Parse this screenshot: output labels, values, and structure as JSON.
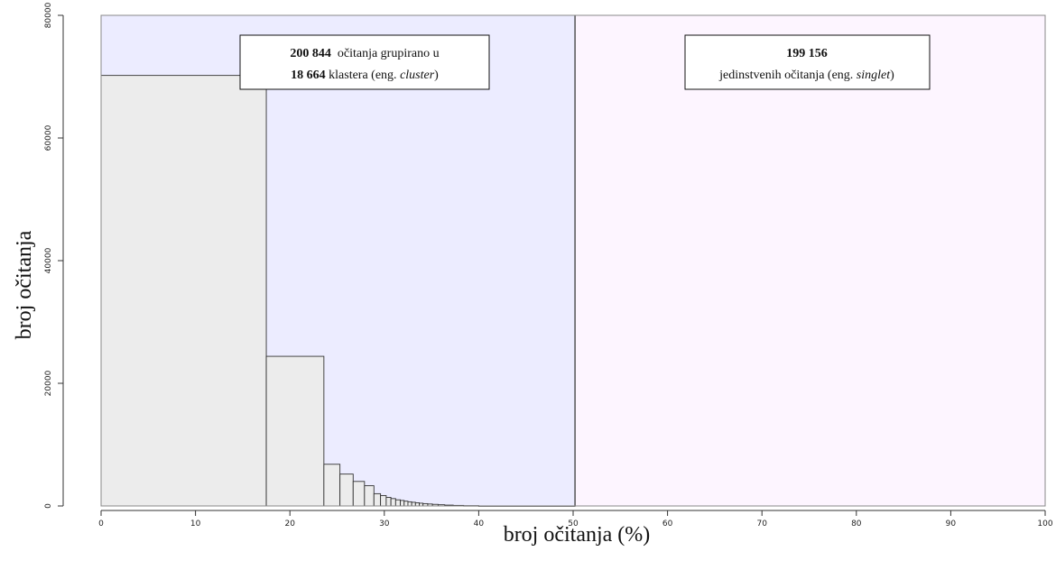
{
  "chart_data": {
    "type": "bar",
    "xlabel": "broj očitanja (%)",
    "ylabel": "broj očitanja",
    "xlim": [
      0,
      100
    ],
    "ylim": [
      0,
      80000
    ],
    "x_ticks": [
      "0",
      "10",
      "20",
      "30",
      "40",
      "50",
      "60",
      "70",
      "80",
      "90",
      "100"
    ],
    "y_ticks": [
      "0",
      "20000",
      "40000",
      "60000",
      "80000"
    ],
    "regions": [
      {
        "from": 0,
        "to": 50.2,
        "color": "#ececff"
      },
      {
        "from": 50.2,
        "to": 100,
        "color": "#fdf5ff"
      }
    ],
    "divider_x": 50.2,
    "bars": [
      {
        "x0": 0,
        "x1": 17.5,
        "value": 70200
      },
      {
        "x0": 17.5,
        "x1": 23.6,
        "value": 24400
      },
      {
        "x0": 23.6,
        "x1": 25.3,
        "value": 6800
      },
      {
        "x0": 25.3,
        "x1": 26.7,
        "value": 5200
      },
      {
        "x0": 26.7,
        "x1": 27.9,
        "value": 4000
      },
      {
        "x0": 27.9,
        "x1": 28.9,
        "value": 3300
      },
      {
        "x0": 28.9,
        "x1": 29.6,
        "value": 2000
      },
      {
        "x0": 29.6,
        "x1": 30.2,
        "value": 1700
      },
      {
        "x0": 30.2,
        "x1": 30.7,
        "value": 1400
      },
      {
        "x0": 30.7,
        "x1": 31.2,
        "value": 1200
      },
      {
        "x0": 31.2,
        "x1": 31.7,
        "value": 1000
      },
      {
        "x0": 31.7,
        "x1": 32.1,
        "value": 900
      },
      {
        "x0": 32.1,
        "x1": 32.5,
        "value": 780
      },
      {
        "x0": 32.5,
        "x1": 32.9,
        "value": 680
      },
      {
        "x0": 32.9,
        "x1": 33.3,
        "value": 600
      },
      {
        "x0": 33.3,
        "x1": 33.7,
        "value": 520
      },
      {
        "x0": 33.7,
        "x1": 34.1,
        "value": 450
      },
      {
        "x0": 34.1,
        "x1": 34.6,
        "value": 380
      },
      {
        "x0": 34.6,
        "x1": 35.1,
        "value": 320
      },
      {
        "x0": 35.1,
        "x1": 35.7,
        "value": 260
      },
      {
        "x0": 35.7,
        "x1": 36.4,
        "value": 200
      },
      {
        "x0": 36.4,
        "x1": 37.3,
        "value": 140
      },
      {
        "x0": 37.3,
        "x1": 38.4,
        "value": 90
      },
      {
        "x0": 38.4,
        "x1": 40.0,
        "value": 50
      },
      {
        "x0": 40.0,
        "x1": 50.2,
        "value": 15
      }
    ],
    "annotations": [
      {
        "line1_bold": "200 844",
        "line1_rest": "  očitanja grupirano u",
        "line2_bold": "18 664",
        "line2_rest": " klastera (eng. ",
        "line2_ital": "cluster",
        "line2_end": ")"
      },
      {
        "line1_bold": "199 156",
        "line2_rest": "jedinstvenih očitanja (eng. ",
        "line2_ital": "singlet",
        "line2_end": ")"
      }
    ],
    "colors": {
      "bar_fill": "#ececec",
      "bar_stroke": "#333333",
      "frame": "#888888",
      "divider": "#555555"
    }
  }
}
